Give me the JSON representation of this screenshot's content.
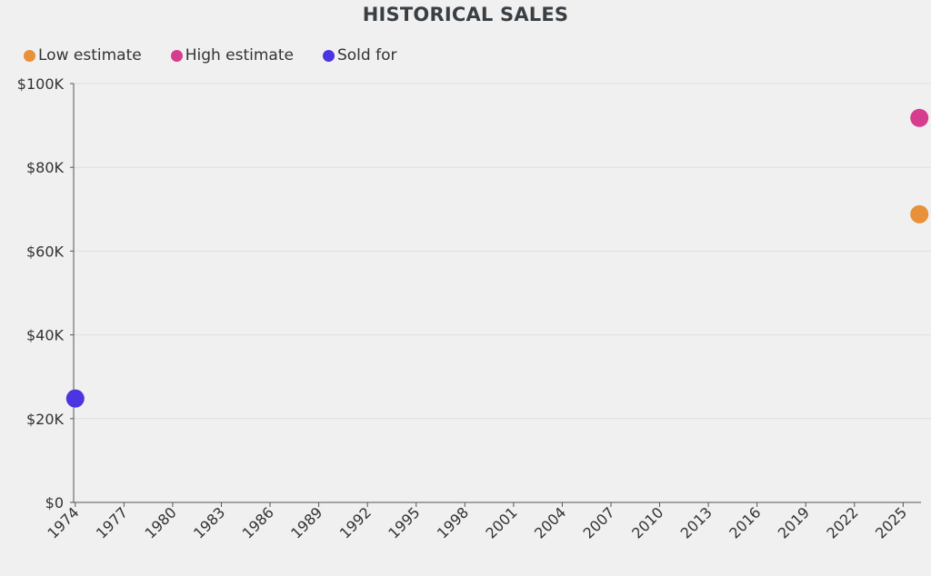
{
  "chart_data": {
    "type": "scatter",
    "title": "HISTORICAL SALES",
    "xlabel": "",
    "ylabel": "",
    "x_ticks": [
      1974,
      1977,
      1980,
      1983,
      1986,
      1989,
      1992,
      1995,
      1998,
      2001,
      2004,
      2007,
      2010,
      2013,
      2016,
      2019,
      2022,
      2025
    ],
    "xlim": [
      1973.9,
      2026.1
    ],
    "ylim": [
      0,
      100000
    ],
    "y_ticks": [
      0,
      20000,
      40000,
      60000,
      80000,
      100000
    ],
    "y_tick_labels": [
      "$0",
      "$20K",
      "$40K",
      "$60K",
      "$80K",
      "$100K"
    ],
    "grid": "horizontal",
    "legend_position": "top-left",
    "series": [
      {
        "name": "Low estimate",
        "color": "#e8913a",
        "points": [
          {
            "x": 2026,
            "y": 68800
          }
        ]
      },
      {
        "name": "High estimate",
        "color": "#d63d8f",
        "points": [
          {
            "x": 2026,
            "y": 91800
          }
        ]
      },
      {
        "name": "Sold for",
        "color": "#4a35e0",
        "points": [
          {
            "x": 1974,
            "y": 24800
          }
        ]
      }
    ]
  }
}
